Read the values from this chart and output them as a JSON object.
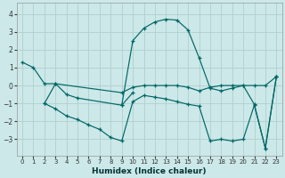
{
  "xlabel": "Humidex (Indice chaleur)",
  "bg_color": "#cce8e8",
  "grid_color": "#b0d0d0",
  "line_color": "#006666",
  "xlim": [
    -0.5,
    23.5
  ],
  "ylim": [
    -3.9,
    4.6
  ],
  "yticks": [
    -3,
    -2,
    -1,
    0,
    1,
    2,
    3,
    4
  ],
  "xticks": [
    0,
    1,
    2,
    3,
    4,
    5,
    6,
    7,
    8,
    9,
    10,
    11,
    12,
    13,
    14,
    15,
    16,
    17,
    18,
    19,
    20,
    21,
    22,
    23
  ],
  "lines": [
    {
      "x": [
        0,
        1,
        2,
        3,
        4,
        5,
        9,
        10
      ],
      "y": [
        1.3,
        1.0,
        0.1,
        0.1,
        -0.5,
        -0.7,
        -1.1,
        -0.4
      ]
    },
    {
      "x": [
        2,
        3,
        9,
        10,
        11,
        12,
        13,
        14,
        15,
        16,
        17,
        18,
        19,
        20,
        21,
        22,
        23
      ],
      "y": [
        -1.0,
        0.1,
        -0.4,
        -0.1,
        0.0,
        0.0,
        0.0,
        0.0,
        -0.1,
        -0.3,
        -0.1,
        0.0,
        0.0,
        0.0,
        0.0,
        0.0,
        0.5
      ]
    },
    {
      "x": [
        9,
        10,
        11,
        12,
        13,
        14,
        15,
        16,
        17,
        18,
        19,
        20,
        21,
        22,
        23
      ],
      "y": [
        -1.1,
        2.5,
        3.2,
        3.55,
        3.7,
        3.65,
        3.1,
        1.55,
        -0.15,
        -0.3,
        -0.15,
        0.0,
        -1.05,
        -3.5,
        0.5
      ]
    },
    {
      "x": [
        2,
        3,
        4,
        5,
        6,
        7,
        8,
        9,
        10,
        11,
        12,
        13,
        14,
        15,
        16,
        17,
        18,
        19,
        20,
        21,
        22,
        23
      ],
      "y": [
        -1.0,
        -1.3,
        -1.7,
        -1.9,
        -2.2,
        -2.45,
        -2.9,
        -3.1,
        -0.9,
        -0.55,
        -0.65,
        -0.75,
        -0.9,
        -1.05,
        -1.15,
        -3.1,
        -3.0,
        -3.1,
        -3.0,
        -1.1,
        -3.5,
        0.5
      ]
    }
  ]
}
